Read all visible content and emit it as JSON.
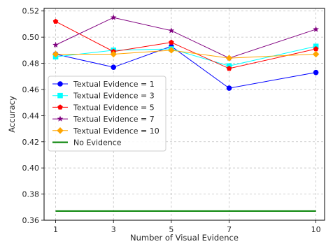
{
  "chart_data": {
    "type": "line",
    "xlabel": "Number of Visual Evidence",
    "ylabel": "Accuracy",
    "x": [
      1,
      3,
      5,
      7,
      10
    ],
    "xlim": [
      0.6,
      10.3
    ],
    "ylim": [
      0.36,
      0.522
    ],
    "xticks": [
      1,
      3,
      5,
      7,
      10
    ],
    "yticks": [
      0.36,
      0.38,
      0.4,
      0.42,
      0.44,
      0.46,
      0.48,
      0.5,
      0.52
    ],
    "ytick_labels": [
      "0.36",
      "0.38",
      "0.40",
      "0.42",
      "0.44",
      "0.46",
      "0.48",
      "0.50",
      "0.52"
    ],
    "grid": true,
    "legend_position": "center-left",
    "series": [
      {
        "name": "Textual Evidence = 1",
        "color": "#0000ff",
        "marker": "circle",
        "values": [
          0.487,
          0.477,
          0.493,
          0.461,
          0.473
        ]
      },
      {
        "name": "Textual Evidence = 3",
        "color": "#00ffff",
        "marker": "square",
        "values": [
          0.485,
          0.49,
          0.491,
          0.478,
          0.493
        ]
      },
      {
        "name": "Textual Evidence = 5",
        "color": "#ff0000",
        "marker": "pentagon",
        "values": [
          0.512,
          0.489,
          0.496,
          0.476,
          0.491
        ]
      },
      {
        "name": "Textual Evidence = 7",
        "color": "#800080",
        "marker": "star",
        "values": [
          0.494,
          0.515,
          0.505,
          0.484,
          0.506
        ]
      },
      {
        "name": "Textual Evidence = 10",
        "color": "#ffa500",
        "marker": "diamond",
        "values": [
          0.487,
          0.487,
          0.49,
          0.484,
          0.487
        ]
      },
      {
        "name": "No Evidence",
        "color": "#008000",
        "marker": "none",
        "values": [
          0.367,
          0.367,
          0.367,
          0.367,
          0.367
        ]
      }
    ]
  }
}
